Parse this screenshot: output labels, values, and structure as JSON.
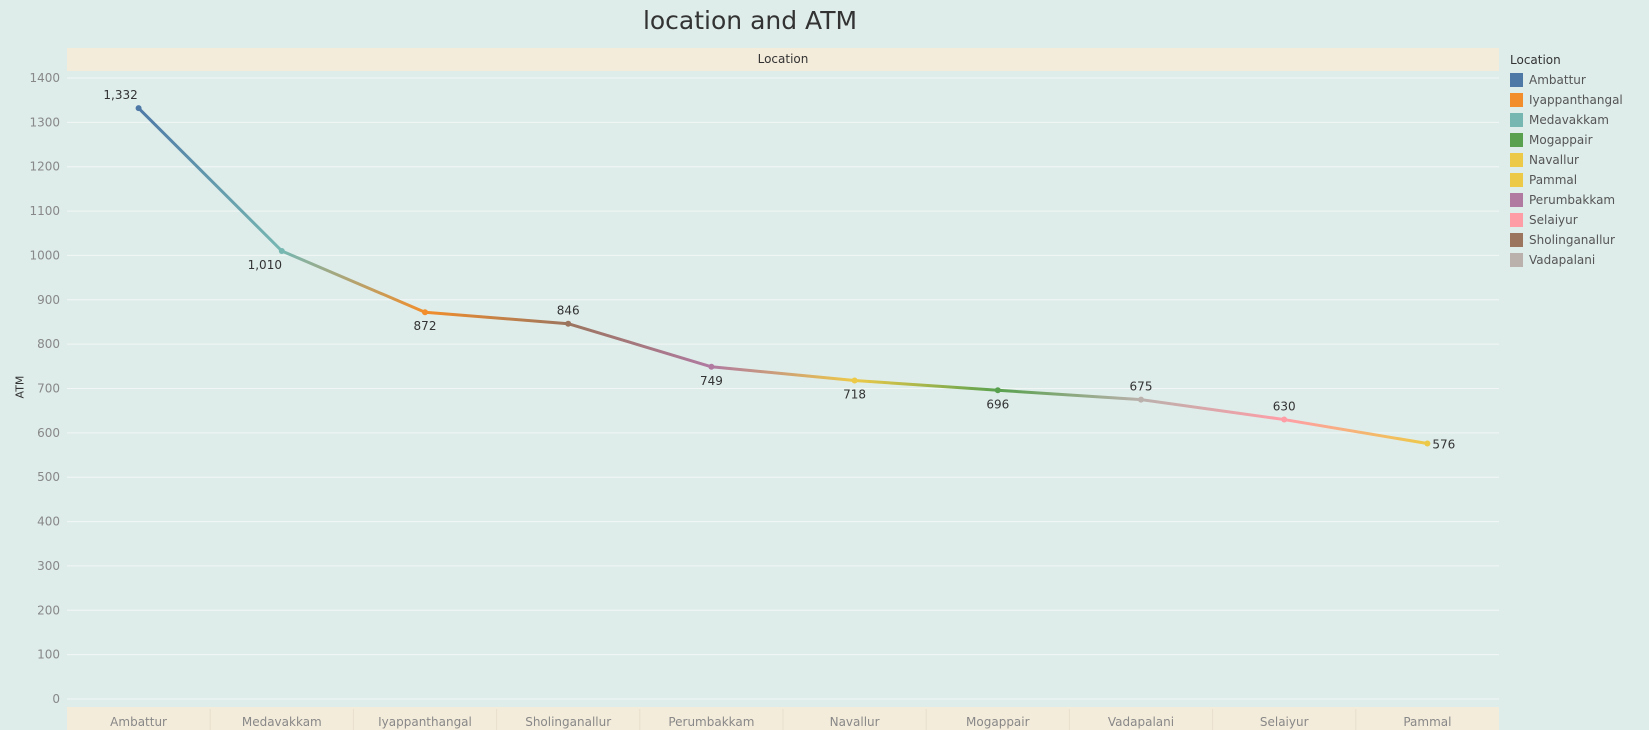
{
  "chart_data": {
    "type": "line",
    "title": "location and ATM",
    "header": "Location",
    "ylabel": "ATM",
    "ylim": [
      0,
      1400
    ],
    "yticks": [
      0,
      100,
      200,
      300,
      400,
      500,
      600,
      700,
      800,
      900,
      1000,
      1100,
      1200,
      1300,
      1400
    ],
    "categories": [
      "Ambattur",
      "Medavakkam",
      "Iyappanthangal",
      "Sholinganallur",
      "Perumbakkam",
      "Navallur",
      "Mogappair",
      "Vadapalani",
      "Selaiyur",
      "Pammal"
    ],
    "values": [
      1332,
      1010,
      872,
      846,
      749,
      718,
      696,
      675,
      630,
      576
    ],
    "data_labels": [
      "1,332",
      "1,010",
      "872",
      "846",
      "749",
      "718",
      "696",
      "675",
      "630",
      "576"
    ],
    "grid": true,
    "legend": {
      "title": "Location",
      "placement": "right",
      "items": [
        {
          "name": "Ambattur",
          "color": "#4e79a7"
        },
        {
          "name": "Iyappanthangal",
          "color": "#f28e2b"
        },
        {
          "name": "Medavakkam",
          "color": "#76b7b2"
        },
        {
          "name": "Mogappair",
          "color": "#59a14f"
        },
        {
          "name": "Navallur",
          "color": "#edc948"
        },
        {
          "name": "Pammal",
          "color": "#edc948"
        },
        {
          "name": "Perumbakkam",
          "color": "#b07aa1"
        },
        {
          "name": "Selaiyur",
          "color": "#ff9da7"
        },
        {
          "name": "Sholinganallur",
          "color": "#9c755f"
        },
        {
          "name": "Vadapalani",
          "color": "#bab0ac"
        }
      ]
    }
  }
}
